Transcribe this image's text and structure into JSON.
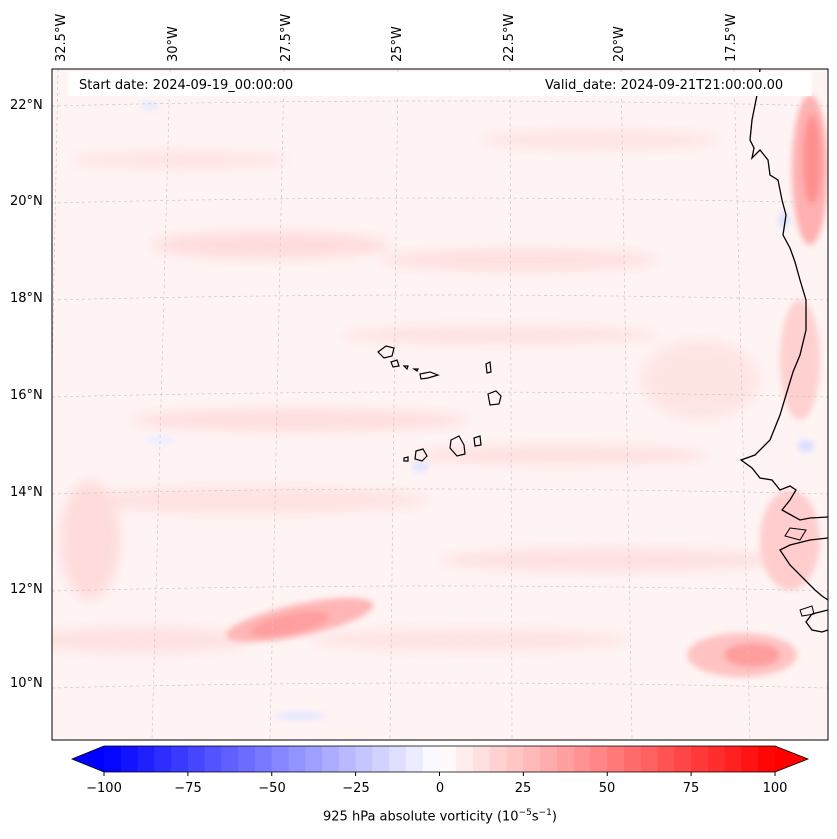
{
  "header": {
    "start_date": "Start date: 2024-09-19_00:00:00",
    "valid_date": "Valid_date: 2024-09-21T21:00:00.00"
  },
  "map": {
    "region": "Cape Verde Islands and West African coast",
    "lon_labels": [
      "32.5°W",
      "30°W",
      "27.5°W",
      "25°W",
      "22.5°W",
      "20°W",
      "17.5°W"
    ],
    "lat_labels": [
      "22°N",
      "20°N",
      "18°N",
      "16°N",
      "14°N",
      "12°N",
      "10°N"
    ]
  },
  "colorbar": {
    "ticks": [
      "−100",
      "−75",
      "−50",
      "−25",
      "0",
      "25",
      "50",
      "75",
      "100"
    ],
    "label_main": "925 hPa absolute vorticity (10",
    "label_exp1": "−5",
    "label_mid": "s",
    "label_exp2": "−1",
    "label_end": ")",
    "min": -100,
    "max": 100,
    "colors": {
      "negative": "#0000ff",
      "neutral": "#ffffff",
      "positive": "#ff0000"
    }
  }
}
